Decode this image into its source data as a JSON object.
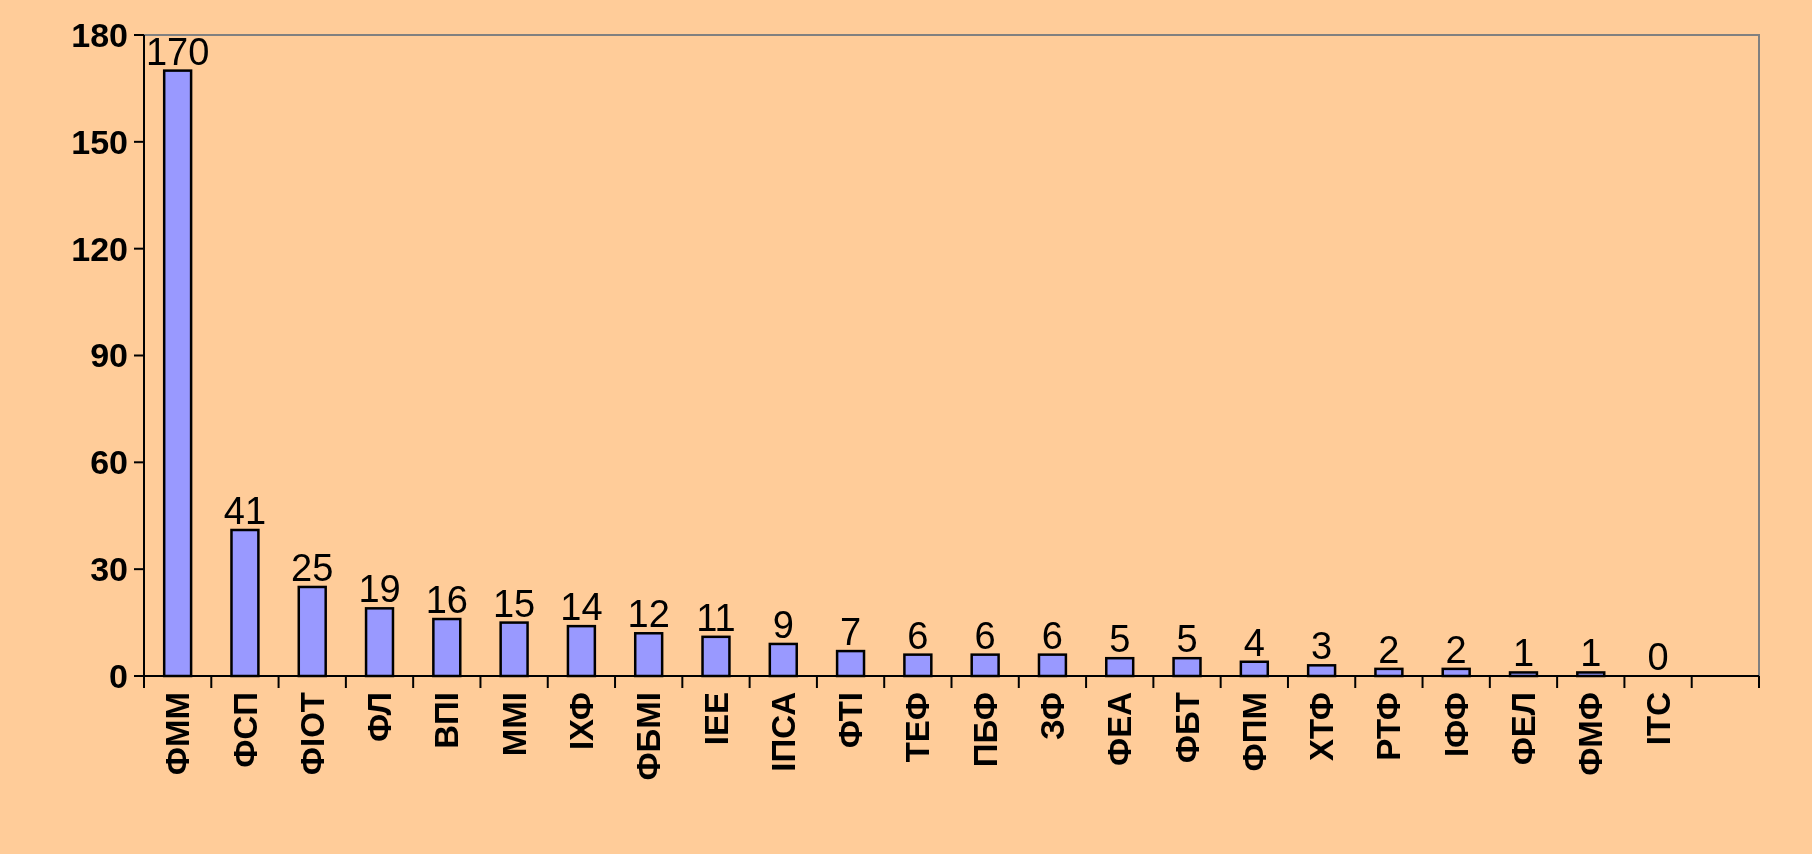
{
  "chart_data": {
    "type": "bar",
    "categories": [
      "ФММ",
      "ФСП",
      "ФІОТ",
      "ФЛ",
      "ВПІ",
      "ММІ",
      "ІХФ",
      "ФБМІ",
      "ІЕЕ",
      "ІПСА",
      "ФТІ",
      "ТЕФ",
      "ПБФ",
      "ЗФ",
      "ФЕА",
      "ФБТ",
      "ФПМ",
      "ХТФ",
      "РТФ",
      "ІФФ",
      "ФЕЛ",
      "ФМФ",
      "ІТС",
      null
    ],
    "values": [
      170,
      41,
      25,
      19,
      16,
      15,
      14,
      12,
      11,
      9,
      7,
      6,
      6,
      6,
      5,
      5,
      4,
      3,
      2,
      2,
      1,
      1,
      0,
      null
    ],
    "color": "#9999ff",
    "ylim": [
      0,
      180
    ],
    "yticks": [
      0,
      30,
      60,
      90,
      120,
      150,
      180
    ],
    "data_labels": true,
    "grid": false
  }
}
